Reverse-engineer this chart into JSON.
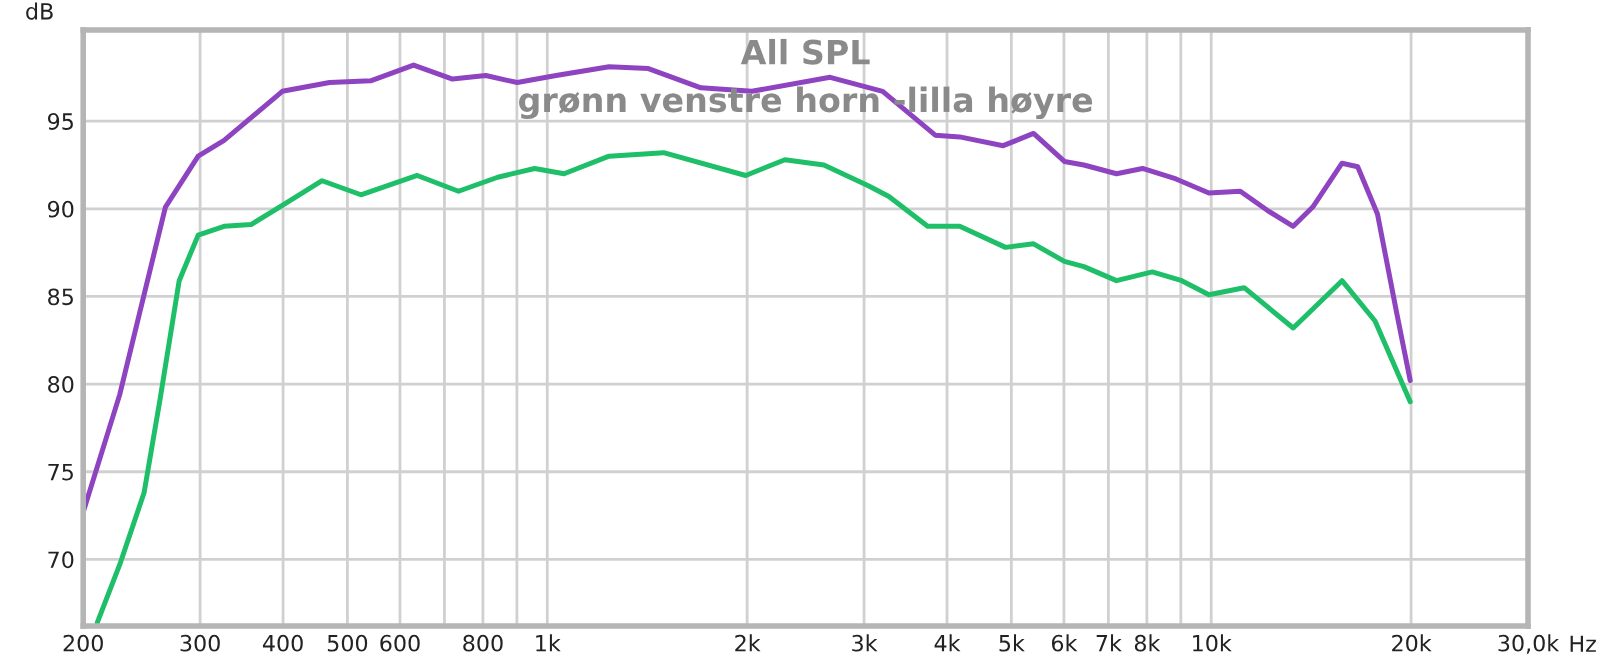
{
  "chart_data": {
    "type": "line",
    "title": "All SPL",
    "subtitle": "grønn venstre horn -lilla høyre",
    "ylabel": "dB",
    "log": "x",
    "xlim": [
      200,
      30000
    ],
    "ylim": [
      66.2,
      100.2
    ],
    "xticks": [
      200,
      300,
      400,
      500,
      600,
      {
        "value": 700,
        "label": null
      },
      800,
      {
        "value": 900,
        "label": null
      },
      {
        "value": 1000,
        "label": "1k"
      },
      {
        "value": 2000,
        "label": "2k"
      },
      {
        "value": 3000,
        "label": "3k"
      },
      {
        "value": 4000,
        "label": "4k"
      },
      {
        "value": 5000,
        "label": "5k"
      },
      {
        "value": 6000,
        "label": "6k"
      },
      {
        "value": 7000,
        "label": "7k"
      },
      {
        "value": 8000,
        "label": "8k"
      },
      {
        "value": 9000,
        "label": null
      },
      {
        "value": 10000,
        "label": "10k"
      },
      {
        "value": 20000,
        "label": "20k"
      },
      {
        "value": 30000,
        "label": "30,0k"
      }
    ],
    "xlabel": "Hz",
    "yticks": [
      70,
      75,
      80,
      85,
      90,
      95
    ],
    "grid": true,
    "legend": false,
    "marker": "none",
    "line_style": "solid",
    "series": [
      {
        "color": "#8e44c0",
        "x": [
          200,
          227,
          266,
          298,
          326,
          399,
          470,
          542,
          629,
          720,
          808,
          901,
          1031,
          1239,
          1420,
          1704,
          2033,
          2667,
          3200,
          3840,
          4180,
          4860,
          5400,
          6010,
          6430,
          7200,
          7880,
          8850,
          9920,
          11060,
          12160,
          13290,
          14220,
          15740,
          16620,
          17800,
          19040,
          19940
        ],
        "values": [
          72.7,
          79.4,
          90.1,
          93.0,
          93.9,
          96.7,
          97.2,
          97.3,
          98.2,
          97.4,
          97.6,
          97.2,
          97.6,
          98.1,
          98.0,
          96.9,
          96.7,
          97.5,
          96.7,
          94.2,
          94.1,
          93.6,
          94.3,
          92.7,
          92.5,
          92.0,
          92.3,
          91.7,
          90.9,
          91.0,
          89.9,
          89.0,
          90.1,
          92.6,
          92.4,
          89.7,
          84.0,
          80.2
        ]
      },
      {
        "color": "#1fbf6a",
        "x": [
          210,
          227,
          247,
          261,
          279,
          298,
          326,
          358,
          399,
          458,
          524,
          637,
          735,
          842,
          957,
          1060,
          1239,
          1497,
          1990,
          2280,
          2610,
          3050,
          3270,
          3740,
          4180,
          4900,
          5400,
          6010,
          6430,
          7200,
          8150,
          9030,
          9920,
          11210,
          13290,
          15740,
          17650,
          19940
        ],
        "values": [
          66.4,
          69.7,
          73.8,
          79.1,
          85.9,
          88.5,
          89.0,
          89.1,
          90.2,
          91.6,
          90.8,
          91.9,
          91.0,
          91.8,
          92.3,
          92.0,
          93.0,
          93.2,
          91.9,
          92.8,
          92.5,
          91.3,
          90.7,
          89.0,
          89.0,
          87.8,
          88.0,
          87.0,
          86.7,
          85.9,
          86.4,
          85.9,
          85.1,
          85.5,
          83.2,
          85.9,
          83.6,
          79.0
        ]
      }
    ]
  }
}
